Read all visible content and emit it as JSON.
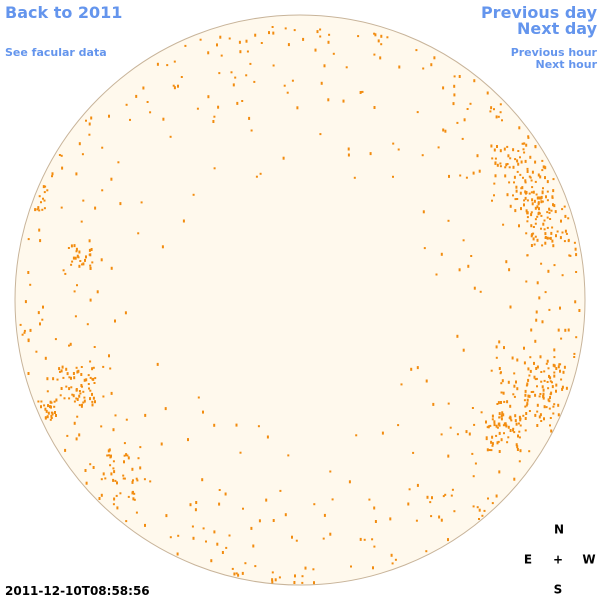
{
  "header": {
    "back_link": "Back to 2011",
    "facular_link": "See facular data",
    "previous_day": "Previous day",
    "next_day": "Next day",
    "previous_hour": "Previous hour",
    "next_hour": "Next hour"
  },
  "timestamp": "2011-12-10T08:58:56",
  "compass": {
    "north": "N",
    "east": "E",
    "center": "+",
    "west": "W",
    "south": "S"
  }
}
